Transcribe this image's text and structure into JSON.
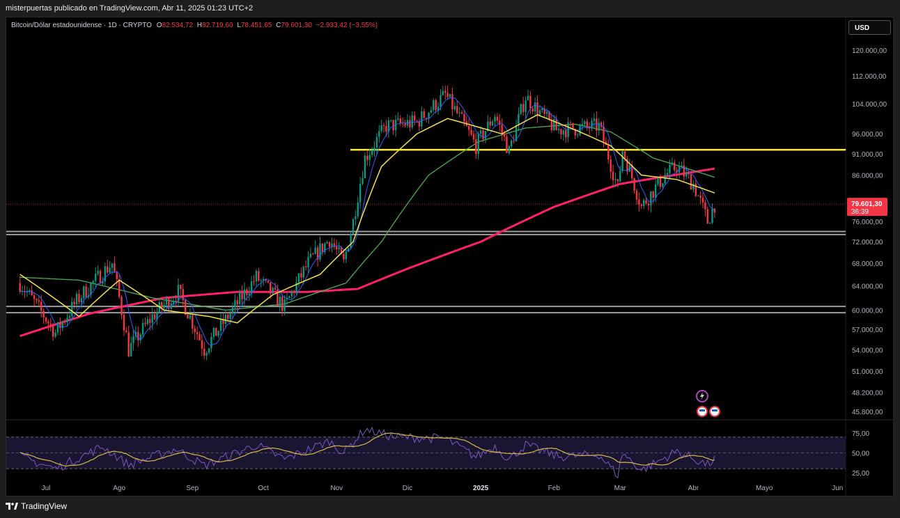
{
  "caption": "misterpuertas publicado en TradingView.com, Abr 11, 2025 01:23 UTC+2",
  "legend": {
    "symbol": "Bitcoin/Dólar estadounidense · 1D · CRYPTO",
    "open_label": "O",
    "open": "82.534,72",
    "high_label": "H",
    "high": "82.719,60",
    "low_label": "L",
    "low": "78.451,65",
    "close_label": "C",
    "close": "79.601,30",
    "change": "−2.933,42 (−3,55%)"
  },
  "currency_button": "USD",
  "footer_brand": "TradingView",
  "colors": {
    "background": "#000000",
    "up": "#089981",
    "down": "#f23645",
    "ma_fast": "#2962ff",
    "ma_yellow": "#f7e14a",
    "ma_green": "#4caf50",
    "ma_long": "#ff1f6a",
    "resistance": "#ffeb3b",
    "support": "#9e9e9e",
    "rsi": "#7e57c2",
    "rsi_ma": "#d4b84a"
  },
  "chart_data": {
    "type": "candlestick",
    "price_axis_ticks": [
      "120.000,00",
      "112.000,00",
      "104.000,00",
      "96.000,00",
      "91.000,00",
      "86.000,00",
      "80.000,00",
      "76.000,00",
      "72.000,00",
      "68.000,00",
      "64.000,00",
      "60.000,00",
      "57.000,00",
      "54.000,00",
      "51.000,00",
      "48.200,00",
      "45.800,00"
    ],
    "price_scale": "log",
    "ylim": [
      45800,
      122000
    ],
    "time_axis_labels": [
      "Jul",
      "Ago",
      "Sep",
      "Oct",
      "Nov",
      "Dic",
      "2025",
      "Feb",
      "Mar",
      "Abr",
      "Mayo",
      "Jun"
    ],
    "last_price": "79.601,30",
    "countdown": "36:39",
    "horizontal_levels": [
      {
        "name": "resistance",
        "value": 92000
      },
      {
        "name": "support-upper-a",
        "value": 74000
      },
      {
        "name": "support-upper-b",
        "value": 73400
      },
      {
        "name": "support-lower-a",
        "value": 60600
      },
      {
        "name": "support-lower-b",
        "value": 59600
      }
    ],
    "price_path": [
      {
        "date": "2024-06-20",
        "price": 64500
      },
      {
        "date": "2024-07-05",
        "price": 56500
      },
      {
        "date": "2024-07-15",
        "price": 62000
      },
      {
        "date": "2024-07-29",
        "price": 68000
      },
      {
        "date": "2024-08-05",
        "price": 54000
      },
      {
        "date": "2024-08-15",
        "price": 59000
      },
      {
        "date": "2024-08-26",
        "price": 63000
      },
      {
        "date": "2024-09-06",
        "price": 54000
      },
      {
        "date": "2024-09-18",
        "price": 60000
      },
      {
        "date": "2024-09-28",
        "price": 65500
      },
      {
        "date": "2024-10-10",
        "price": 60500
      },
      {
        "date": "2024-10-20",
        "price": 68000
      },
      {
        "date": "2024-10-29",
        "price": 72500
      },
      {
        "date": "2024-11-04",
        "price": 68000
      },
      {
        "date": "2024-11-08",
        "price": 76000
      },
      {
        "date": "2024-11-13",
        "price": 90000
      },
      {
        "date": "2024-11-22",
        "price": 98000
      },
      {
        "date": "2024-12-05",
        "price": 99000
      },
      {
        "date": "2024-12-17",
        "price": 106500
      },
      {
        "date": "2024-12-30",
        "price": 93000
      },
      {
        "date": "2025-01-07",
        "price": 101000
      },
      {
        "date": "2025-01-13",
        "price": 91500
      },
      {
        "date": "2025-01-20",
        "price": 106000
      },
      {
        "date": "2025-01-27",
        "price": 101000
      },
      {
        "date": "2025-02-02",
        "price": 97000
      },
      {
        "date": "2025-02-20",
        "price": 98000
      },
      {
        "date": "2025-02-28",
        "price": 83000
      },
      {
        "date": "2025-03-02",
        "price": 92000
      },
      {
        "date": "2025-03-10",
        "price": 79000
      },
      {
        "date": "2025-03-20",
        "price": 86000
      },
      {
        "date": "2025-03-25",
        "price": 88000
      },
      {
        "date": "2025-04-01",
        "price": 84000
      },
      {
        "date": "2025-04-07",
        "price": 76000
      },
      {
        "date": "2025-04-10",
        "price": 79601
      }
    ],
    "ma_yellow_path": [
      {
        "date": "2024-06-20",
        "price": 66000
      },
      {
        "date": "2024-07-15",
        "price": 59000
      },
      {
        "date": "2024-08-01",
        "price": 65000
      },
      {
        "date": "2024-08-20",
        "price": 60000
      },
      {
        "date": "2024-09-08",
        "price": 59000
      },
      {
        "date": "2024-09-20",
        "price": 58000
      },
      {
        "date": "2024-10-05",
        "price": 62500
      },
      {
        "date": "2024-10-25",
        "price": 66000
      },
      {
        "date": "2024-11-08",
        "price": 72000
      },
      {
        "date": "2024-11-20",
        "price": 88000
      },
      {
        "date": "2024-12-05",
        "price": 96000
      },
      {
        "date": "2024-12-18",
        "price": 100000
      },
      {
        "date": "2025-01-10",
        "price": 96000
      },
      {
        "date": "2025-01-25",
        "price": 101000
      },
      {
        "date": "2025-02-10",
        "price": 97000
      },
      {
        "date": "2025-02-25",
        "price": 93000
      },
      {
        "date": "2025-03-10",
        "price": 86000
      },
      {
        "date": "2025-03-25",
        "price": 85000
      },
      {
        "date": "2025-04-10",
        "price": 82000
      }
    ],
    "ma_green_path": [
      {
        "date": "2024-06-20",
        "price": 65500
      },
      {
        "date": "2024-07-15",
        "price": 65000
      },
      {
        "date": "2024-08-15",
        "price": 62000
      },
      {
        "date": "2024-09-15",
        "price": 60000
      },
      {
        "date": "2024-10-10",
        "price": 61000
      },
      {
        "date": "2024-11-05",
        "price": 64500
      },
      {
        "date": "2024-11-20",
        "price": 72000
      },
      {
        "date": "2024-12-10",
        "price": 86000
      },
      {
        "date": "2024-12-31",
        "price": 94000
      },
      {
        "date": "2025-01-20",
        "price": 97500
      },
      {
        "date": "2025-02-10",
        "price": 98500
      },
      {
        "date": "2025-02-25",
        "price": 96500
      },
      {
        "date": "2025-03-15",
        "price": 90000
      },
      {
        "date": "2025-04-10",
        "price": 85500
      }
    ],
    "ma_long_path": [
      {
        "date": "2024-06-20",
        "price": 56000
      },
      {
        "date": "2024-07-20",
        "price": 59500
      },
      {
        "date": "2024-08-20",
        "price": 62000
      },
      {
        "date": "2024-09-20",
        "price": 63000
      },
      {
        "date": "2024-10-20",
        "price": 63000
      },
      {
        "date": "2024-11-10",
        "price": 63500
      },
      {
        "date": "2024-12-01",
        "price": 67000
      },
      {
        "date": "2025-01-01",
        "price": 72000
      },
      {
        "date": "2025-02-01",
        "price": 79000
      },
      {
        "date": "2025-03-01",
        "price": 84000
      },
      {
        "date": "2025-04-10",
        "price": 87500
      }
    ],
    "rsi": {
      "axis_ticks": [
        "75,00",
        "50,00",
        "25,00"
      ],
      "ylim": [
        15,
        85
      ],
      "levels": [
        70,
        50,
        30
      ],
      "path": [
        {
          "date": "2024-06-20",
          "value": 45
        },
        {
          "date": "2024-07-05",
          "value": 30
        },
        {
          "date": "2024-07-25",
          "value": 58
        },
        {
          "date": "2024-08-05",
          "value": 35
        },
        {
          "date": "2024-08-25",
          "value": 55
        },
        {
          "date": "2024-09-06",
          "value": 34
        },
        {
          "date": "2024-09-28",
          "value": 60
        },
        {
          "date": "2024-10-10",
          "value": 42
        },
        {
          "date": "2024-10-29",
          "value": 65
        },
        {
          "date": "2024-11-04",
          "value": 50
        },
        {
          "date": "2024-11-13",
          "value": 80
        },
        {
          "date": "2024-11-25",
          "value": 70
        },
        {
          "date": "2024-12-17",
          "value": 68
        },
        {
          "date": "2024-12-30",
          "value": 45
        },
        {
          "date": "2025-01-07",
          "value": 58
        },
        {
          "date": "2025-01-13",
          "value": 42
        },
        {
          "date": "2025-01-20",
          "value": 60
        },
        {
          "date": "2025-02-03",
          "value": 45
        },
        {
          "date": "2025-02-20",
          "value": 48
        },
        {
          "date": "2025-02-28",
          "value": 22
        },
        {
          "date": "2025-03-02",
          "value": 50
        },
        {
          "date": "2025-03-10",
          "value": 28
        },
        {
          "date": "2025-03-25",
          "value": 52
        },
        {
          "date": "2025-04-07",
          "value": 35
        },
        {
          "date": "2025-04-10",
          "value": 42
        }
      ]
    }
  }
}
